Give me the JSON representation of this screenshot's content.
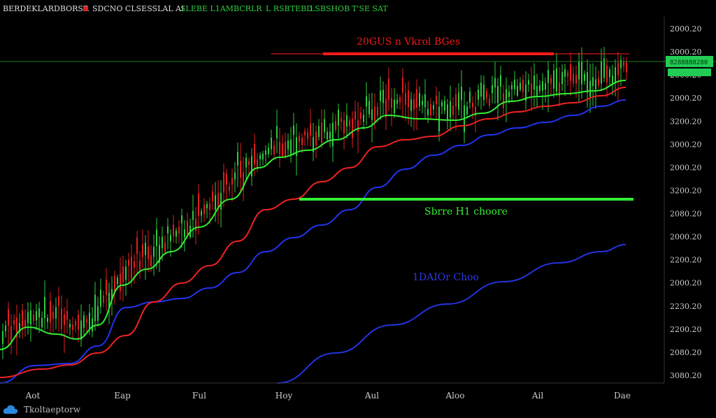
{
  "header": {
    "symbol": "BERDEKLARDBORSR",
    "info": "SDCNO CLSESSLAL AI",
    "ohlc_1": "SLEBE L1AMBCRLR",
    "ohlc_2": "L RSBTEBD",
    "ohlc_3": "LSBSHOB",
    "ohlc_4": "T'SE SAT"
  },
  "price_scale": {
    "labels": [
      "2000.20",
      "3000.20",
      "2000.20",
      "2000.20",
      "3200.20",
      "3000.20",
      "2000.20",
      "3200.20",
      "2080.20",
      "2000.20",
      "2200.20",
      "2000.20",
      "2230.20",
      "2200.20",
      "2080.20",
      "3080.20"
    ],
    "current_price": "8288888280"
  },
  "time_axis": {
    "labels": [
      "Aot",
      "Eap",
      "Ful",
      "Hoy",
      "Aul",
      "Aloo",
      "Ail",
      "Dae"
    ]
  },
  "annotations": {
    "resistance": "20GUS n Vkrol BGes",
    "support": "Sbrre H1 choore",
    "trend": "1DAIOr Choo"
  },
  "footer": {
    "brand": "Tkoltaeptorw"
  },
  "colors": {
    "background": "#000000",
    "up_candle": "#2ecc40",
    "down_candle": "#e02020",
    "ma_fast": "#33ee33",
    "ma_mid": "#ee2222",
    "ma_slow": "#2233ee",
    "resistance": "#ee1a1a",
    "support": "#33ee33",
    "trend": "#2233dd"
  },
  "chart_data": {
    "type": "candlestick",
    "y_axis_labels": [
      "2000.20",
      "3000.20",
      "2000.20",
      "2000.20",
      "3200.20",
      "3000.20",
      "2000.20",
      "3200.20",
      "2080.20",
      "2000.20",
      "2200.20",
      "2000.20",
      "2230.20",
      "2200.20",
      "2080.20",
      "3080.20"
    ],
    "x_axis_labels": [
      "Aot",
      "Eap",
      "Ful",
      "Hoy",
      "Aul",
      "Aloo",
      "Ail",
      "Dae"
    ],
    "series": [
      {
        "name": "20GUS n Vkrol BGes",
        "kind": "resistance-line"
      },
      {
        "name": "Sbrre H1 choore",
        "kind": "support-line"
      },
      {
        "name": "1DAIOr Choo",
        "kind": "trend-line"
      }
    ],
    "grid": false
  }
}
